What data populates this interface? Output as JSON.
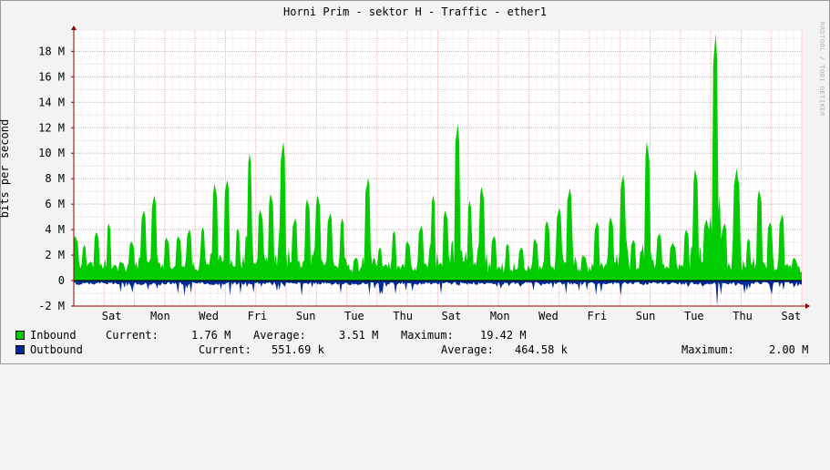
{
  "chart_data": {
    "type": "area",
    "title": "Horni Prim - sektor H - Traffic - ether1",
    "ylabel": "bits per second",
    "watermark": "RRDTOOL / TOBI OETIKER",
    "ylim": [
      -2000000,
      19600000
    ],
    "y_ticks": [
      -2000000,
      0,
      2000000,
      4000000,
      6000000,
      8000000,
      10000000,
      12000000,
      14000000,
      16000000,
      18000000
    ],
    "y_tick_labels": [
      "-2 M",
      "0",
      "2 M",
      "4 M",
      "6 M",
      "8 M",
      "10 M",
      "12 M",
      "14 M",
      "16 M",
      "18 M"
    ],
    "x_tick_labels": [
      "Sat",
      "Mon",
      "Wed",
      "Fri",
      "Sun",
      "Tue",
      "Thu",
      "Sat",
      "Mon",
      "Wed",
      "Fri",
      "Sun",
      "Tue",
      "Thu",
      "Sat"
    ],
    "grid": true,
    "colors": {
      "inbound": "#00cc00",
      "outbound": "#002a97",
      "grid": "#ff9999",
      "axis": "#8a0000"
    },
    "inbound_peaks": [
      {
        "day": 0.05,
        "value": 3500000
      },
      {
        "day": 0.35,
        "value": 2800000
      },
      {
        "day": 0.55,
        "value": 1500000
      },
      {
        "day": 0.75,
        "value": 3800000
      },
      {
        "day": 1.15,
        "value": 4500000
      },
      {
        "day": 1.55,
        "value": 1500000
      },
      {
        "day": 1.9,
        "value": 3100000
      },
      {
        "day": 2.3,
        "value": 5500000
      },
      {
        "day": 2.65,
        "value": 6700000
      },
      {
        "day": 3.05,
        "value": 3400000
      },
      {
        "day": 3.45,
        "value": 3500000
      },
      {
        "day": 3.8,
        "value": 4000000
      },
      {
        "day": 4.25,
        "value": 4200000
      },
      {
        "day": 4.65,
        "value": 7600000
      },
      {
        "day": 5.05,
        "value": 7900000
      },
      {
        "day": 5.4,
        "value": 4100000
      },
      {
        "day": 5.8,
        "value": 10000000
      },
      {
        "day": 6.15,
        "value": 5600000
      },
      {
        "day": 6.5,
        "value": 6800000
      },
      {
        "day": 6.9,
        "value": 10900000
      },
      {
        "day": 7.3,
        "value": 4900000
      },
      {
        "day": 7.7,
        "value": 6400000
      },
      {
        "day": 8.05,
        "value": 6700000
      },
      {
        "day": 8.45,
        "value": 5300000
      },
      {
        "day": 8.85,
        "value": 4900000
      },
      {
        "day": 9.3,
        "value": 1800000
      },
      {
        "day": 9.7,
        "value": 8100000
      },
      {
        "day": 10.1,
        "value": 2600000
      },
      {
        "day": 10.55,
        "value": 3900000
      },
      {
        "day": 11.0,
        "value": 3100000
      },
      {
        "day": 11.45,
        "value": 4300000
      },
      {
        "day": 11.85,
        "value": 6700000
      },
      {
        "day": 12.25,
        "value": 5500000
      },
      {
        "day": 12.65,
        "value": 12300000
      },
      {
        "day": 13.05,
        "value": 6300000
      },
      {
        "day": 13.45,
        "value": 7400000
      },
      {
        "day": 13.85,
        "value": 3500000
      },
      {
        "day": 14.3,
        "value": 2900000
      },
      {
        "day": 14.75,
        "value": 2600000
      },
      {
        "day": 15.2,
        "value": 3300000
      },
      {
        "day": 15.6,
        "value": 4700000
      },
      {
        "day": 16.0,
        "value": 5700000
      },
      {
        "day": 16.35,
        "value": 7300000
      },
      {
        "day": 16.8,
        "value": 2000000
      },
      {
        "day": 17.25,
        "value": 4600000
      },
      {
        "day": 17.7,
        "value": 5000000
      },
      {
        "day": 18.1,
        "value": 8300000
      },
      {
        "day": 18.45,
        "value": 3200000
      },
      {
        "day": 18.9,
        "value": 10900000
      },
      {
        "day": 19.3,
        "value": 3700000
      },
      {
        "day": 19.75,
        "value": 3000000
      },
      {
        "day": 20.2,
        "value": 4000000
      },
      {
        "day": 20.5,
        "value": 8700000
      },
      {
        "day": 20.85,
        "value": 4800000
      },
      {
        "day": 21.15,
        "value": 19400000
      },
      {
        "day": 21.45,
        "value": 4500000
      },
      {
        "day": 21.85,
        "value": 8800000
      },
      {
        "day": 22.25,
        "value": 3300000
      },
      {
        "day": 22.6,
        "value": 7100000
      },
      {
        "day": 22.95,
        "value": 4600000
      },
      {
        "day": 23.35,
        "value": 5200000
      },
      {
        "day": 23.75,
        "value": 1800000
      }
    ],
    "outbound_min": -2000000,
    "days_visible": 24
  },
  "legend": {
    "inbound": {
      "name": "Inbound",
      "current_label": "Current:",
      "current": "1.76 M",
      "average_label": "Average:",
      "average": "3.51 M",
      "maximum_label": "Maximum:",
      "maximum": "19.42 M",
      "color": "#00cc00"
    },
    "outbound": {
      "name": "Outbound",
      "current_label": "Current:",
      "current": "551.69 k",
      "average_label": "Average:",
      "average": "464.58 k",
      "maximum_label": "Maximum:",
      "maximum": "2.00 M",
      "color": "#002a97"
    }
  }
}
